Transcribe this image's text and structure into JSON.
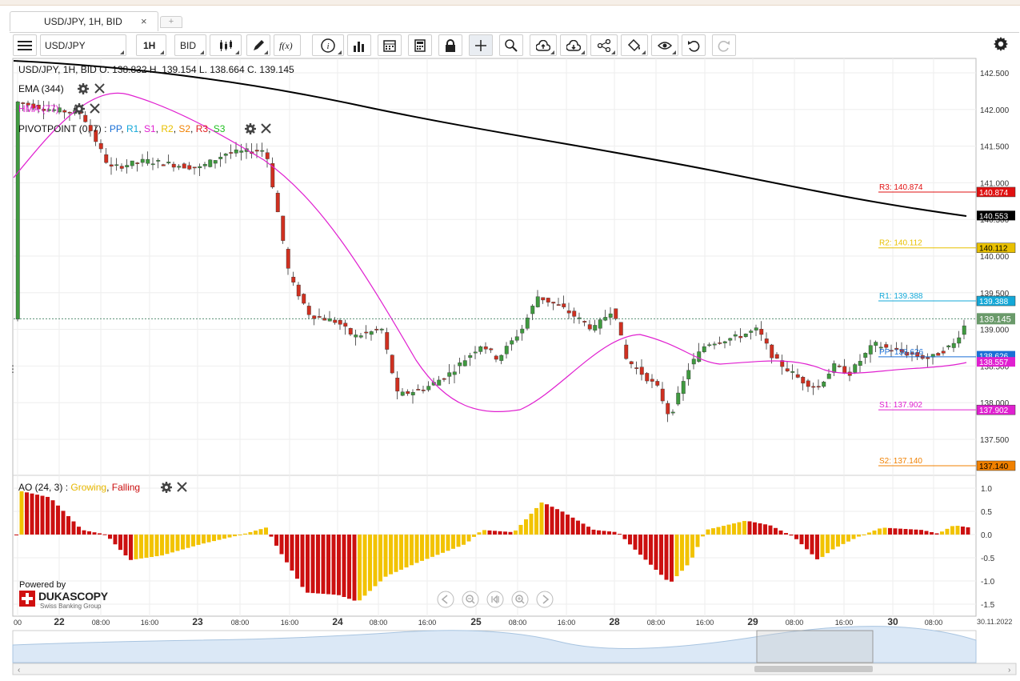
{
  "tab": {
    "title": "USD/JPY, 1H, BID",
    "close": "×",
    "add": "+"
  },
  "toolbar": {
    "instrument": "USD/JPY",
    "period": "1H",
    "side": "BID",
    "fx_label": "f(x)",
    "info_label": "i"
  },
  "chart": {
    "ohlc_header": "USD/JPY, 1H, BID   O. 138.832 H. 139.154 L. 138.664 C. 139.145",
    "ema_label": "EMA (344)",
    "hma_label": "HMA (77)",
    "pivot_label": "PIVOTPOINT (0, 7)",
    "pivot_sep": " : ",
    "pivot_items": [
      "PP",
      "R1",
      "S1",
      "R2",
      "S2",
      "R3",
      "S3"
    ],
    "pivot_colors": [
      "#1a6fd6",
      "#13a8d8",
      "#e020d0",
      "#e8c000",
      "#f08000",
      "#e02020",
      "#20c020"
    ],
    "pivot_lines": [
      {
        "label": "R3: 140.874",
        "value": 140.874,
        "tag": "140.874",
        "color": "#e01010"
      },
      {
        "label": "R2: 140.112",
        "value": 140.112,
        "tag": "140.112",
        "color": "#e8c000"
      },
      {
        "label": "R1: 139.388",
        "value": 139.388,
        "tag": "139.388",
        "color": "#13a8d8"
      },
      {
        "label": "S1: 137.902",
        "value": 137.902,
        "tag": "137.902",
        "color": "#e020d0"
      },
      {
        "label": "S2: 137.140",
        "value": 137.14,
        "tag": "137.140",
        "color": "#f08000"
      }
    ],
    "pp_label": "PP: 138.626",
    "current_price": "139.145",
    "ema_tag": "140.553",
    "pp_tag": "138.626",
    "hma_tag": "138.557",
    "price_axis": [
      "142.500",
      "142.000",
      "141.500",
      "141.000",
      "140.500",
      "140.000",
      "139.500",
      "139.000",
      "138.500",
      "138.000",
      "137.500"
    ],
    "ao_label": "AO (24, 3)",
    "ao_growing": "Growing",
    "ao_falling": "Falling",
    "ao_sep": " : ",
    "ao_axis": [
      "1.0",
      "0.5",
      "0.0",
      "-0.5",
      "-1.0",
      "-1.5"
    ],
    "time_axis": [
      {
        "t": "00",
        "bold": false
      },
      {
        "t": "22",
        "bold": true
      },
      {
        "t": "08:00",
        "bold": false
      },
      {
        "t": "16:00",
        "bold": false
      },
      {
        "t": "23",
        "bold": true
      },
      {
        "t": "08:00",
        "bold": false
      },
      {
        "t": "16:00",
        "bold": false
      },
      {
        "t": "24",
        "bold": true
      },
      {
        "t": "08:00",
        "bold": false
      },
      {
        "t": "16:00",
        "bold": false
      },
      {
        "t": "25",
        "bold": true
      },
      {
        "t": "08:00",
        "bold": false
      },
      {
        "t": "16:00",
        "bold": false
      },
      {
        "t": "28",
        "bold": true
      },
      {
        "t": "08:00",
        "bold": false
      },
      {
        "t": "16:00",
        "bold": false
      },
      {
        "t": "29",
        "bold": true
      },
      {
        "t": "08:00",
        "bold": false
      },
      {
        "t": "16:00",
        "bold": false
      },
      {
        "t": "30",
        "bold": true
      },
      {
        "t": "08:00",
        "bold": false
      }
    ],
    "date_right": "30.11.2022",
    "powered_by": "Powered by",
    "brand": "DUKASCOPY",
    "brand_sub": "Swiss Banking Group"
  },
  "colors": {
    "up": "#3f9a3f",
    "down": "#d03020",
    "ema": "#000000",
    "hma": "#e020d0",
    "ao_up": "#f2c300",
    "ao_down": "#cc1010",
    "current": "#6a9a6a"
  }
}
